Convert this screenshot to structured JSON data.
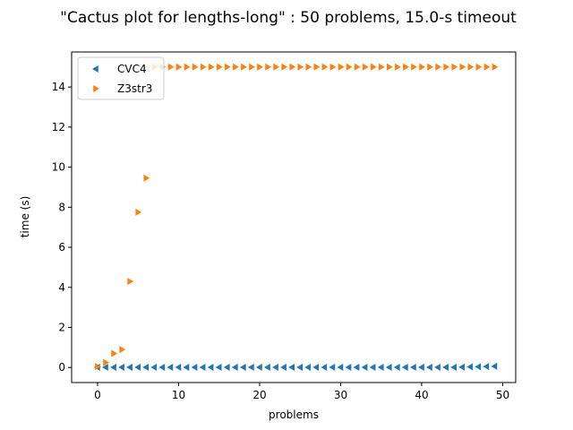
{
  "chart_data": {
    "type": "scatter",
    "title": "\"Cactus plot for lengths-long\" : 50 problems, 15.0-s timeout",
    "xlabel": "problems",
    "ylabel": "time (s)",
    "xlim": [
      -3.2,
      51.6
    ],
    "ylim": [
      -0.75,
      15.75
    ],
    "xticks": [
      0,
      10,
      20,
      30,
      40,
      50
    ],
    "yticks": [
      0,
      2,
      4,
      6,
      8,
      10,
      12,
      14
    ],
    "grid": false,
    "legend_position": "top-left",
    "series": [
      {
        "name": "CVC4",
        "marker": "triangle-left",
        "color": "#1f77b4",
        "x": [
          0,
          1,
          2,
          3,
          4,
          5,
          6,
          7,
          8,
          9,
          10,
          11,
          12,
          13,
          14,
          15,
          16,
          17,
          18,
          19,
          20,
          21,
          22,
          23,
          24,
          25,
          26,
          27,
          28,
          29,
          30,
          31,
          32,
          33,
          34,
          35,
          36,
          37,
          38,
          39,
          40,
          41,
          42,
          43,
          44,
          45,
          46,
          47,
          48,
          49
        ],
        "y": [
          0.01,
          0.01,
          0.01,
          0.01,
          0.01,
          0.01,
          0.01,
          0.01,
          0.01,
          0.01,
          0.01,
          0.01,
          0.01,
          0.01,
          0.01,
          0.01,
          0.01,
          0.01,
          0.01,
          0.01,
          0.01,
          0.01,
          0.01,
          0.01,
          0.01,
          0.01,
          0.01,
          0.01,
          0.01,
          0.01,
          0.01,
          0.01,
          0.01,
          0.01,
          0.01,
          0.01,
          0.01,
          0.01,
          0.01,
          0.01,
          0.01,
          0.01,
          0.01,
          0.01,
          0.01,
          0.02,
          0.03,
          0.04,
          0.05,
          0.06
        ]
      },
      {
        "name": "Z3str3",
        "marker": "triangle-right",
        "color": "#ff7f0e",
        "x": [
          0,
          1,
          2,
          3,
          4,
          5,
          6,
          7,
          8,
          9,
          10,
          11,
          12,
          13,
          14,
          15,
          16,
          17,
          18,
          19,
          20,
          21,
          22,
          23,
          24,
          25,
          26,
          27,
          28,
          29,
          30,
          31,
          32,
          33,
          34,
          35,
          36,
          37,
          38,
          39,
          40,
          41,
          42,
          43,
          44,
          45,
          46,
          47,
          48,
          49
        ],
        "y": [
          0.05,
          0.25,
          0.7,
          0.9,
          4.3,
          7.75,
          9.45,
          15,
          15,
          15,
          15,
          15,
          15,
          15,
          15,
          15,
          15,
          15,
          15,
          15,
          15,
          15,
          15,
          15,
          15,
          15,
          15,
          15,
          15,
          15,
          15,
          15,
          15,
          15,
          15,
          15,
          15,
          15,
          15,
          15,
          15,
          15,
          15,
          15,
          15,
          15,
          15,
          15,
          15,
          15
        ]
      }
    ]
  }
}
